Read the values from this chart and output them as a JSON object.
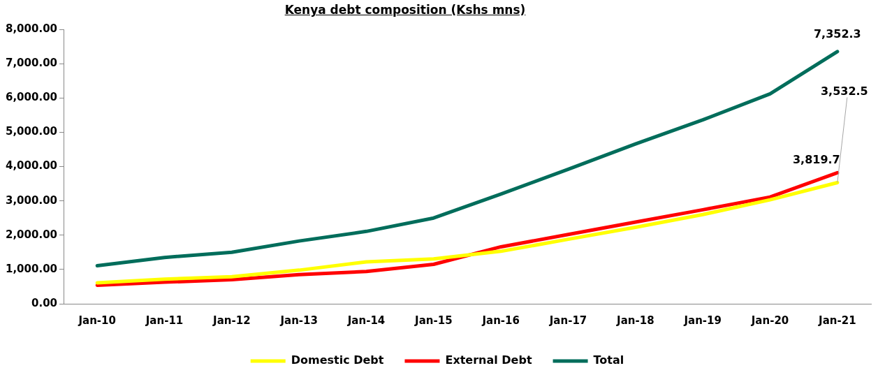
{
  "chart_data": {
    "type": "line",
    "title": "Kenya debt composition (Kshs mns)",
    "categories": [
      "Jan-10",
      "Jan-11",
      "Jan-12",
      "Jan-13",
      "Jan-14",
      "Jan-15",
      "Jan-16",
      "Jan-17",
      "Jan-18",
      "Jan-19",
      "Jan-20",
      "Jan-21"
    ],
    "series": [
      {
        "name": "Domestic Debt",
        "color": "#ffff00",
        "values": [
          610,
          720,
          790,
          980,
          1220,
          1310,
          1530,
          1880,
          2230,
          2600,
          3030,
          3532.5
        ],
        "value_labels": [
          null,
          null,
          null,
          null,
          null,
          null,
          null,
          null,
          null,
          null,
          null,
          "3,532.5"
        ]
      },
      {
        "name": "External Debt",
        "color": "#ff0000",
        "values": [
          540,
          630,
          700,
          850,
          940,
          1150,
          1660,
          2020,
          2380,
          2740,
          3110,
          3819.7
        ],
        "value_labels": [
          null,
          null,
          null,
          null,
          null,
          null,
          null,
          null,
          null,
          null,
          null,
          "3,819.7"
        ]
      },
      {
        "name": "Total",
        "color": "#006d5b",
        "values": [
          1110,
          1350,
          1500,
          1830,
          2110,
          2500,
          3200,
          3920,
          4660,
          5360,
          6120,
          7352.3
        ],
        "value_labels": [
          null,
          null,
          null,
          null,
          null,
          null,
          null,
          null,
          null,
          null,
          null,
          "7,352.3"
        ]
      }
    ],
    "ylim": [
      0,
      8000
    ],
    "yticks": [
      {
        "value": 0,
        "label": "0.00"
      },
      {
        "value": 1000,
        "label": "1,000.00"
      },
      {
        "value": 2000,
        "label": "2,000.00"
      },
      {
        "value": 3000,
        "label": "3,000.00"
      },
      {
        "value": 4000,
        "label": "4,000.00"
      },
      {
        "value": 5000,
        "label": "5,000.00"
      },
      {
        "value": 6000,
        "label": "6,000.00"
      },
      {
        "value": 7000,
        "label": "7,000.00"
      },
      {
        "value": 8000,
        "label": "8,000.00"
      }
    ],
    "grid": false,
    "legend": "bottom",
    "marker": "none",
    "line_style": "solid"
  }
}
